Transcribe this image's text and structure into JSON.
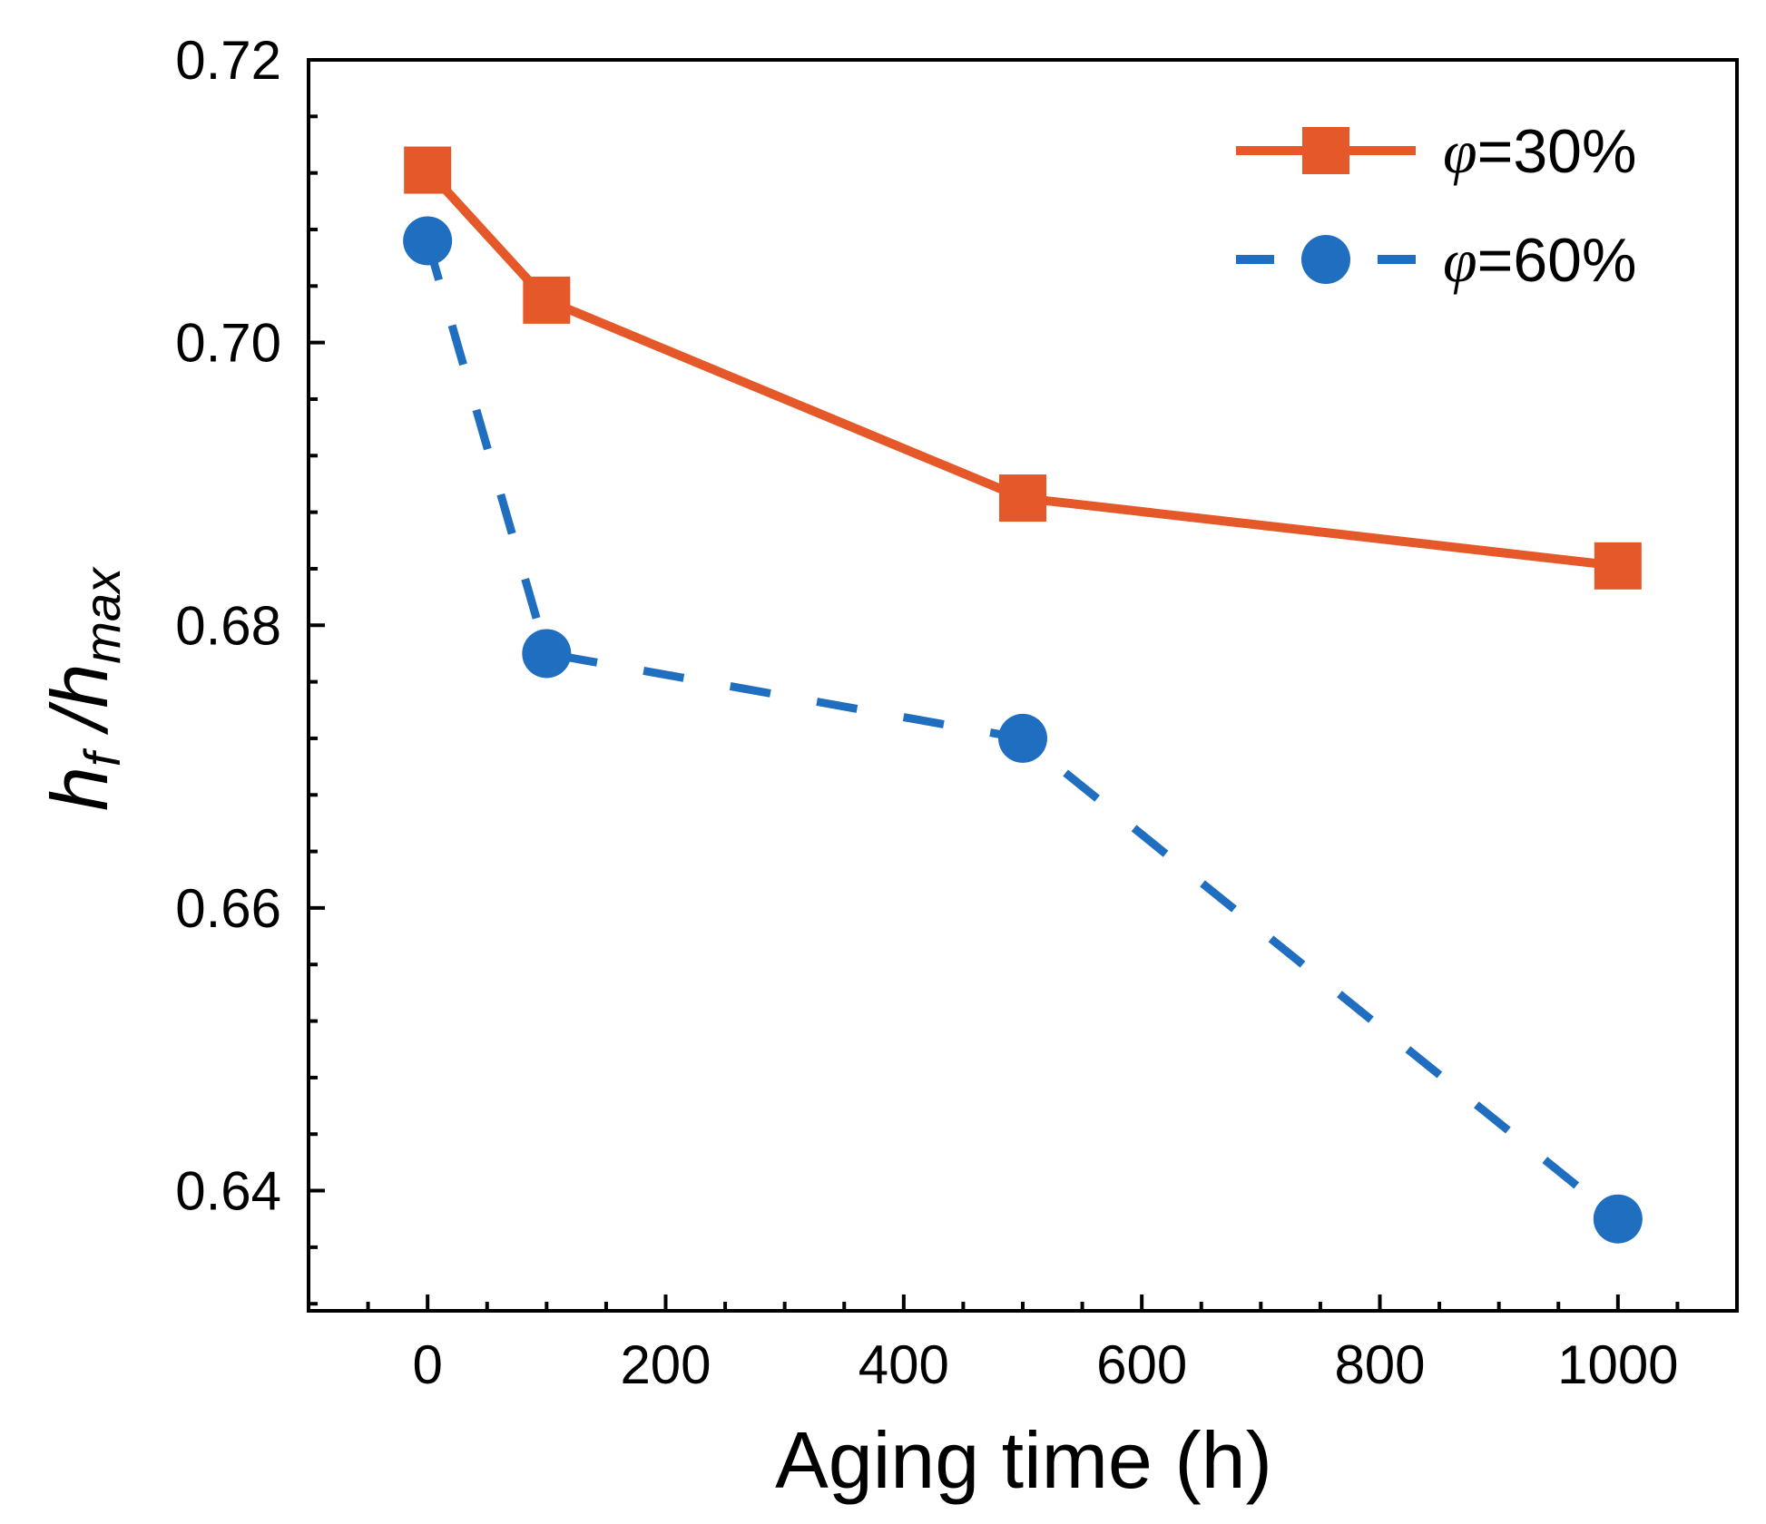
{
  "chart_data": {
    "type": "line",
    "title": "",
    "xlabel": "Aging time (h)",
    "ylabel": {
      "h1": "h",
      "sub1": "f",
      "slash": " /",
      "h2": "h",
      "sub2": "max"
    },
    "xlim": [
      -100,
      1100
    ],
    "ylim": [
      0.6315,
      0.72
    ],
    "x_ticks": [
      0,
      200,
      400,
      600,
      800,
      1000
    ],
    "x_tick_labels": [
      "0",
      "200",
      "400",
      "600",
      "800",
      "1000"
    ],
    "y_ticks": [
      0.64,
      0.66,
      0.68,
      0.7,
      0.72
    ],
    "y_tick_labels": [
      "0.64",
      "0.66",
      "0.68",
      "0.70",
      "0.72"
    ],
    "grid": false,
    "legend_position": "top-right",
    "series": [
      {
        "name_symbol": "φ",
        "name_rest": "=30%",
        "color": "#E5582A",
        "line_style": "solid",
        "marker": "square",
        "x": [
          0,
          100,
          500,
          1000
        ],
        "y": [
          0.7122,
          0.703,
          0.689,
          0.6842
        ]
      },
      {
        "name_symbol": "φ",
        "name_rest": "=60%",
        "color": "#1F6EC0",
        "line_style": "dashed",
        "marker": "circle",
        "x": [
          0,
          100,
          500,
          1000
        ],
        "y": [
          0.7072,
          0.678,
          0.672,
          0.638
        ]
      }
    ]
  }
}
